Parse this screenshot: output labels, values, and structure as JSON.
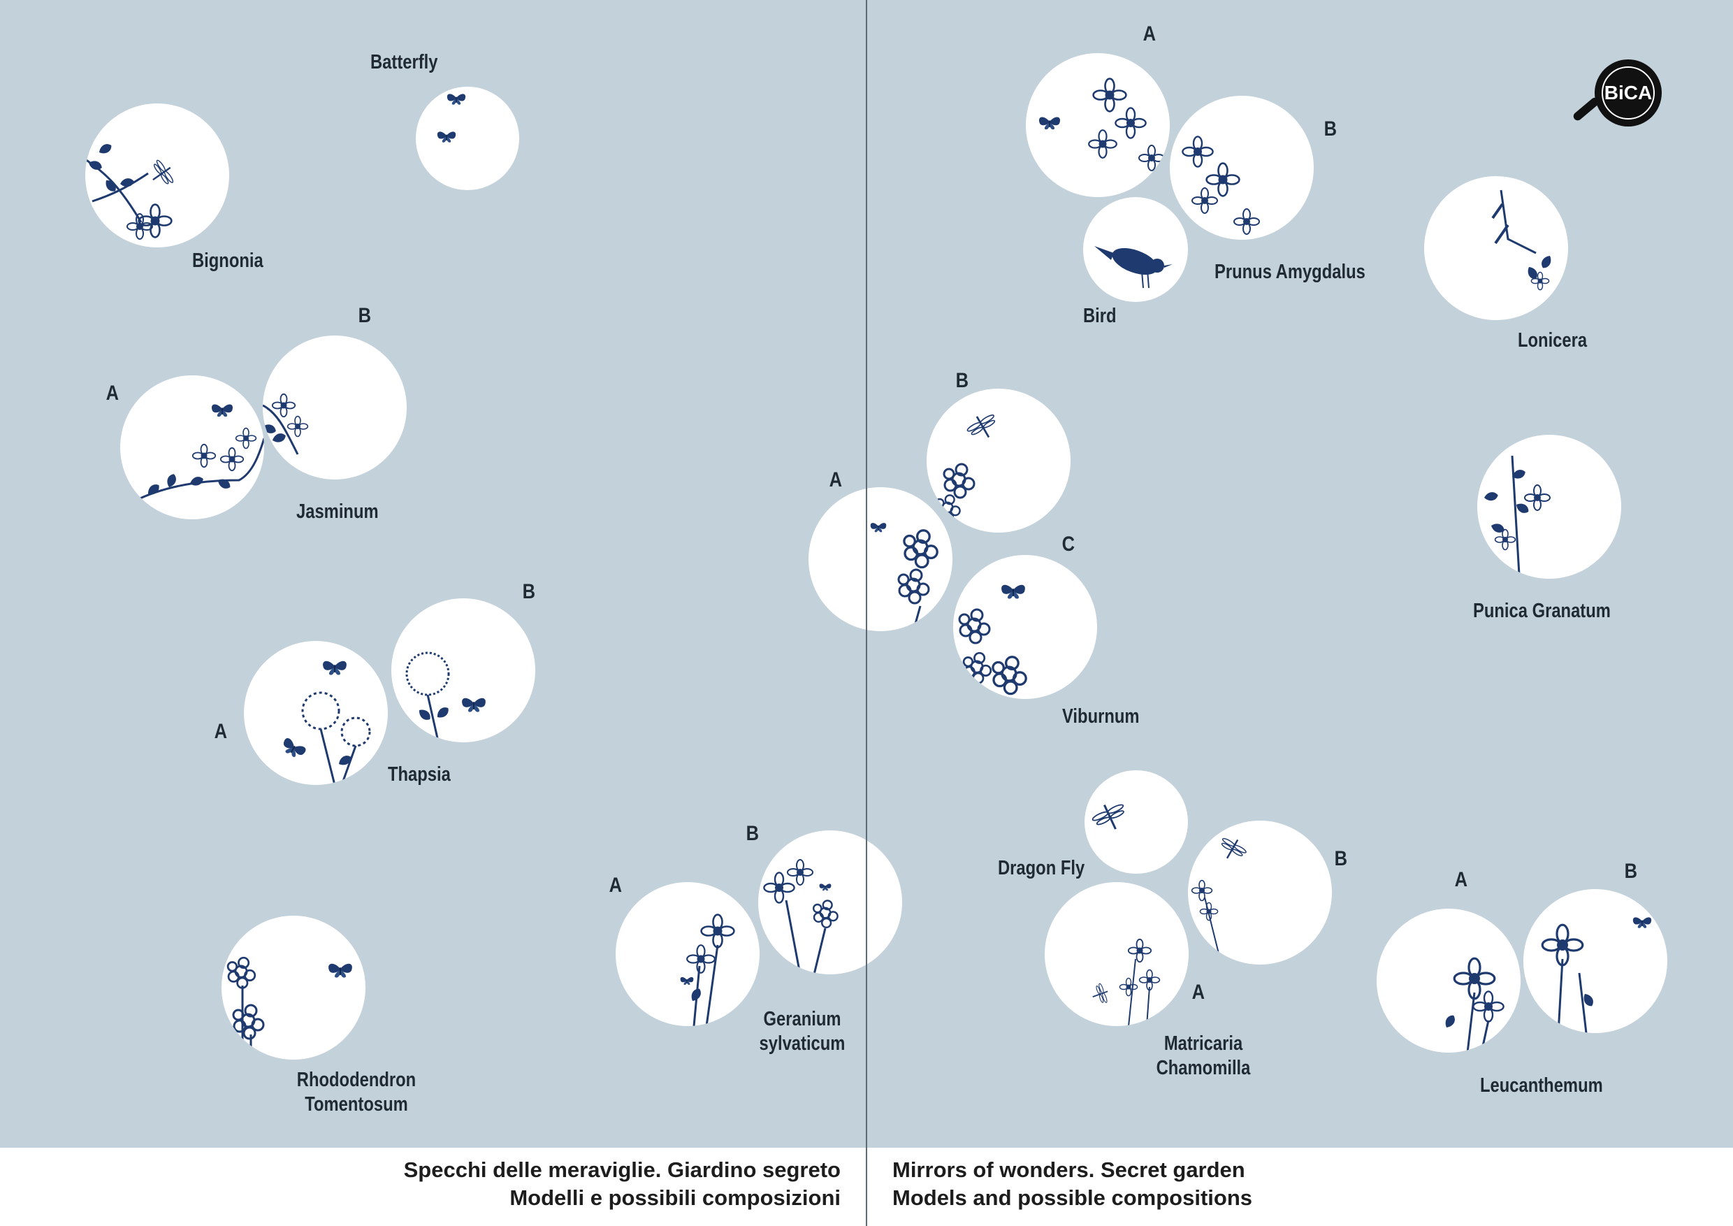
{
  "labels": {
    "butterfly": "Batterfly",
    "bignonia": "Bignonia",
    "jasminum": "Jasminum",
    "thapsia": "Thapsia",
    "rhododendron": [
      "Rhododendron",
      "Tomentosum"
    ],
    "geranium": [
      "Geranium",
      "sylvaticum"
    ],
    "prunus": "Prunus Amygdalus",
    "bird": "Bird",
    "lonicera": "Lonicera",
    "viburnum": "Viburnum",
    "punica": "Punica Granatum",
    "dragonfly": "Dragon Fly",
    "matricaria": [
      "Matricaria",
      "Chamomilla"
    ],
    "leucanthemum": "Leucanthemum"
  },
  "letters": {
    "a": "A",
    "b": "B",
    "c": "C"
  },
  "logo": {
    "text": "BiCA"
  },
  "footer": {
    "left": [
      "Specchi delle meraviglie. Giardino segreto",
      "Modelli e possibili composizioni"
    ],
    "right": [
      "Mirrors of wonders. Secret garden",
      "Models and possible compositions"
    ]
  },
  "colors": {
    "background": "#c3d1da",
    "ink": "#1e3a6e",
    "circle": "#ffffff",
    "text": "#1f2a33"
  },
  "icons": [
    "butterfly-icon",
    "dragonfly-icon",
    "bird-icon",
    "flower-icon",
    "bica-logo-icon"
  ]
}
